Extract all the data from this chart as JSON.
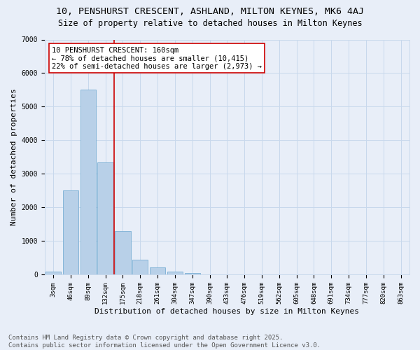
{
  "title_line1": "10, PENSHURST CRESCENT, ASHLAND, MILTON KEYNES, MK6 4AJ",
  "title_line2": "Size of property relative to detached houses in Milton Keynes",
  "xlabel": "Distribution of detached houses by size in Milton Keynes",
  "ylabel": "Number of detached properties",
  "bin_labels": [
    "3sqm",
    "46sqm",
    "89sqm",
    "132sqm",
    "175sqm",
    "218sqm",
    "261sqm",
    "304sqm",
    "347sqm",
    "390sqm",
    "433sqm",
    "476sqm",
    "519sqm",
    "562sqm",
    "605sqm",
    "648sqm",
    "691sqm",
    "734sqm",
    "777sqm",
    "820sqm",
    "863sqm"
  ],
  "bar_values": [
    100,
    2500,
    5500,
    3350,
    1300,
    450,
    220,
    100,
    60,
    0,
    0,
    0,
    0,
    0,
    0,
    0,
    0,
    0,
    0,
    0,
    0
  ],
  "bar_color": "#b8d0e8",
  "bar_edgecolor": "#7aafd4",
  "grid_color": "#c8d8ec",
  "background_color": "#e8eef8",
  "vline_color": "#cc0000",
  "annotation_text": "10 PENSHURST CRESCENT: 160sqm\n← 78% of detached houses are smaller (10,415)\n22% of semi-detached houses are larger (2,973) →",
  "annotation_box_color": "#ffffff",
  "annotation_box_edgecolor": "#cc0000",
  "ylim": [
    0,
    7000
  ],
  "yticks": [
    0,
    1000,
    2000,
    3000,
    4000,
    5000,
    6000,
    7000
  ],
  "footer_line1": "Contains HM Land Registry data © Crown copyright and database right 2025.",
  "footer_line2": "Contains public sector information licensed under the Open Government Licence v3.0.",
  "title_fontsize": 9.5,
  "subtitle_fontsize": 8.5,
  "tick_fontsize": 6.5,
  "label_fontsize": 8,
  "annotation_fontsize": 7.5,
  "footer_fontsize": 6.5,
  "vline_bin_index": 4
}
